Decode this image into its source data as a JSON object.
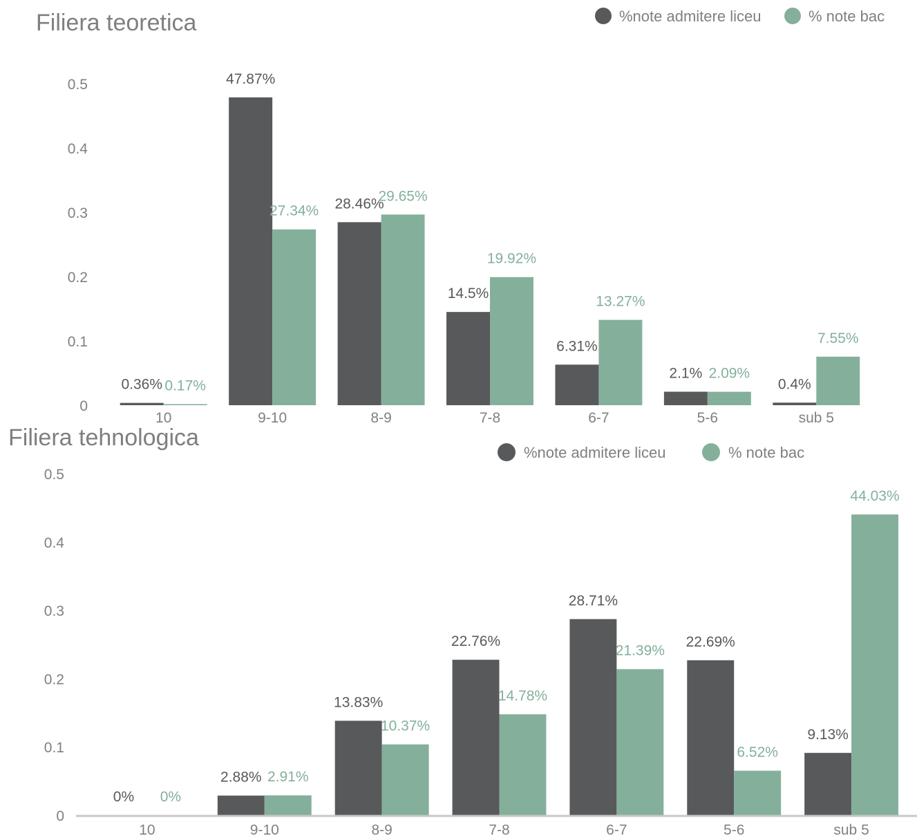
{
  "colors": {
    "series_a": "#58595b",
    "series_b": "#84b09b",
    "text": "#7f7f7f",
    "axis": "#c8c8c8"
  },
  "chart_data": [
    {
      "type": "bar",
      "title": "Filiera teoretica",
      "categories": [
        "10",
        "9-10",
        "8-9",
        "7-8",
        "6-7",
        "5-6",
        "sub 5"
      ],
      "series": [
        {
          "name": "%note admitere liceu",
          "values": [
            0.0036,
            0.4787,
            0.2846,
            0.145,
            0.0631,
            0.021,
            0.004
          ],
          "labels": [
            "0.36%",
            "47.87%",
            "28.46%",
            "14.5%",
            "6.31%",
            "2.1%",
            "0.4%"
          ]
        },
        {
          "name": "% note bac",
          "values": [
            0.0017,
            0.2734,
            0.2965,
            0.1992,
            0.1327,
            0.0209,
            0.0755
          ],
          "labels": [
            "0.17%",
            "27.34%",
            "29.65%",
            "19.92%",
            "13.27%",
            "2.09%",
            "7.55%"
          ]
        }
      ],
      "yticks": [
        "0",
        "0.1",
        "0.2",
        "0.3",
        "0.4",
        "0.5"
      ],
      "ylim": [
        0,
        0.5
      ],
      "legend": "top-right",
      "grid": false
    },
    {
      "type": "bar",
      "title": "Filiera tehnologica",
      "categories": [
        "10",
        "9-10",
        "8-9",
        "7-8",
        "6-7",
        "5-6",
        "sub 5"
      ],
      "series": [
        {
          "name": "%note admitere liceu",
          "values": [
            0,
            0.0288,
            0.1383,
            0.2276,
            0.2871,
            0.2269,
            0.0913
          ],
          "labels": [
            "0%",
            "2.88%",
            "13.83%",
            "22.76%",
            "28.71%",
            "22.69%",
            "9.13%"
          ]
        },
        {
          "name": "% note bac",
          "values": [
            0,
            0.0291,
            0.1037,
            0.1478,
            0.2139,
            0.0652,
            0.4403
          ],
          "labels": [
            "0%",
            "2.91%",
            "10.37%",
            "14.78%",
            "21.39%",
            "6.52%",
            "44.03%"
          ]
        }
      ],
      "yticks": [
        "0",
        "0.1",
        "0.2",
        "0.3",
        "0.4",
        "0.5"
      ],
      "ylim": [
        0,
        0.5
      ],
      "legend": "top-right",
      "grid": false
    }
  ]
}
